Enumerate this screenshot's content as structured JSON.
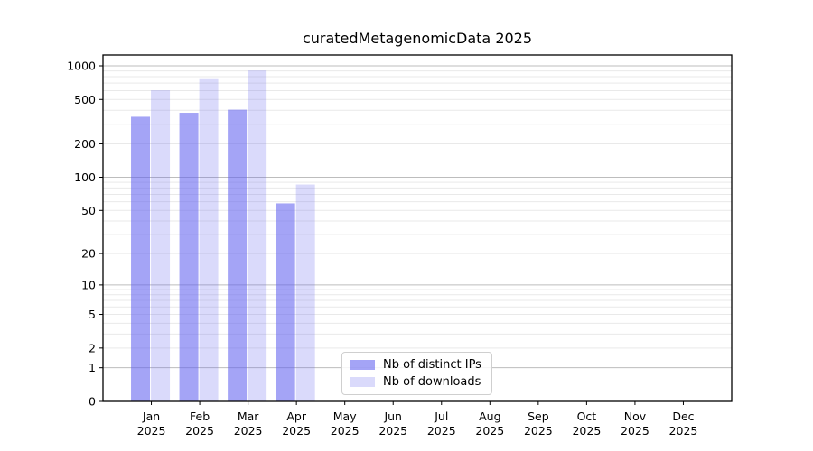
{
  "figure": {
    "background": "#ffffff"
  },
  "chart_data": {
    "type": "bar",
    "title": "curatedMetagenomicData 2025",
    "categories": [
      "Jan",
      "Feb",
      "Mar",
      "Apr",
      "May",
      "Jun",
      "Jul",
      "Aug",
      "Sep",
      "Oct",
      "Nov",
      "Dec"
    ],
    "year_label": "2025",
    "series": [
      {
        "name": "Nb of distinct IPs",
        "fill": "rgba(99,99,240,0.58)",
        "values": [
          350,
          380,
          405,
          58,
          null,
          null,
          null,
          null,
          null,
          null,
          null,
          null
        ]
      },
      {
        "name": "Nb of downloads",
        "fill": "rgba(99,99,240,0.24)",
        "values": [
          605,
          760,
          910,
          86,
          null,
          null,
          null,
          null,
          null,
          null,
          null,
          null
        ]
      }
    ],
    "xlabel": "",
    "ylabel": "",
    "scale": "log10(1+v)",
    "ylim": [
      0,
      1250
    ],
    "y_ticks": [
      0,
      1,
      2,
      5,
      10,
      20,
      50,
      100,
      200,
      500,
      1000
    ],
    "major_gridlines": [
      1,
      10,
      100,
      1000
    ],
    "minor_gridlines": [
      2,
      3,
      4,
      5,
      6,
      7,
      8,
      9,
      20,
      30,
      40,
      50,
      60,
      70,
      80,
      90,
      200,
      300,
      400,
      500,
      600,
      700,
      800,
      900
    ],
    "grid_major_color": "#bdbdbd",
    "grid_minor_color": "#e9e9e9",
    "axis_color": "#000000",
    "tick_label_color": "#000000",
    "legend_position": "lower center",
    "grid": "on"
  }
}
